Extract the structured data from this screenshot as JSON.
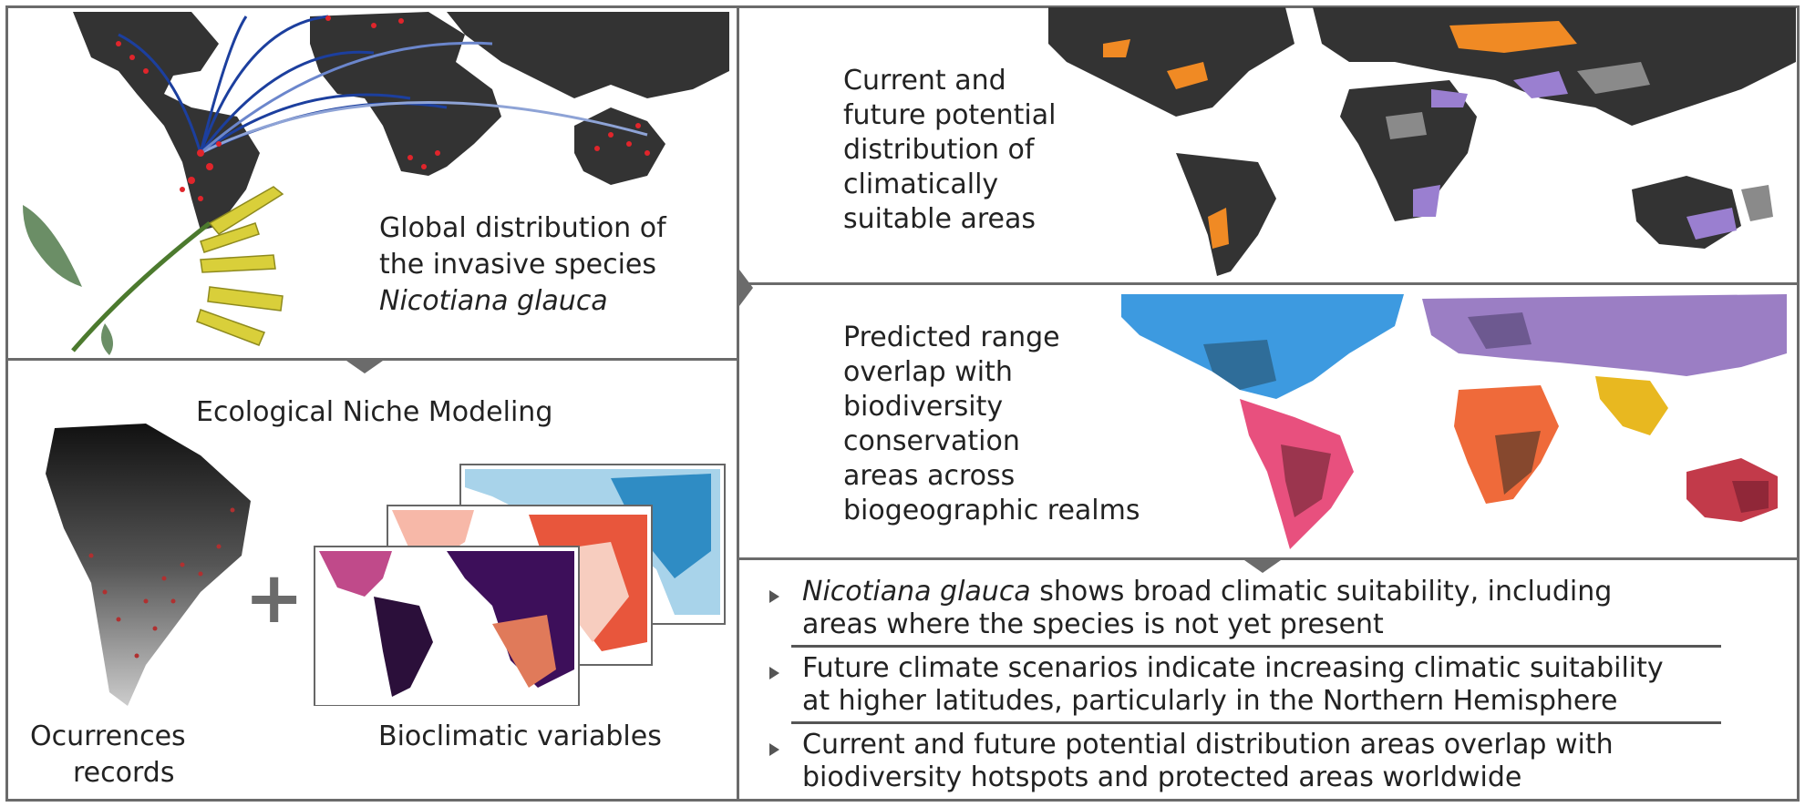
{
  "panels": {
    "global": {
      "line1": "Global distribution of",
      "line2": "the invasive species",
      "species": "Nicotiana glauca"
    },
    "enm": {
      "title": "Ecological Niche Modeling",
      "occurrences_line1": "Ocurrences",
      "occurrences_line2": "records",
      "bioclim": "Bioclimatic variables",
      "plus": "+"
    },
    "current_future": {
      "lines": [
        "Current and",
        "future potential",
        "distribution of",
        "climatically",
        "suitable areas"
      ]
    },
    "overlap": {
      "lines": [
        "Predicted range",
        "overlap with",
        "biodiversity",
        "conservation",
        "areas across",
        "biogeographic realms"
      ]
    },
    "findings": {
      "items": [
        {
          "italic": "Nicotiana glauca",
          "rest": " shows broad climatic suitability, including",
          "line2": "areas where the species is not yet present"
        },
        {
          "italic": "",
          "rest": "Future climate scenarios indicate increasing climatic suitability",
          "line2": "at higher latitudes, particularly in the Northern Hemisphere"
        },
        {
          "italic": "",
          "rest": "Current and future potential distribution areas overlap with",
          "line2": "biodiversity hotspots and protected areas worldwide"
        }
      ]
    }
  },
  "colors": {
    "frame": "#6b6b6b",
    "land_dark": "#333333",
    "occurrence_red": "#e0252b",
    "flow_blue": "#1c3f9e",
    "suit_orange": "#f08a24",
    "suit_purple": "#9a7fd0",
    "realm_blue": "#3d9ae0",
    "realm_purple": "#9b7ec4",
    "realm_pink": "#e8507e",
    "realm_orange": "#ef6a3a",
    "realm_yellow": "#e8b820",
    "realm_red": "#c23a4a"
  }
}
